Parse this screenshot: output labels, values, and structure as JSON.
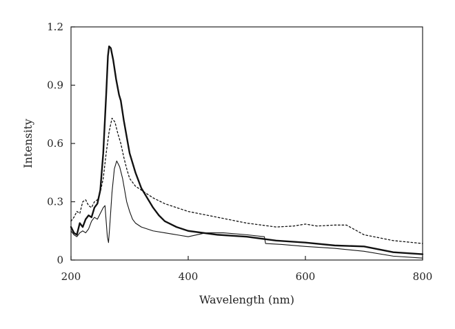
{
  "chart_data": {
    "type": "line",
    "xlabel": "Wavelength (nm)",
    "ylabel": "Intensity",
    "xlim": [
      200,
      800
    ],
    "ylim": [
      0,
      1.2
    ],
    "x_ticks": [
      200,
      400,
      600,
      800
    ],
    "y_ticks": [
      0,
      0.3,
      0.6,
      0.9,
      1.2
    ],
    "y_tick_labels": [
      "0",
      "0.3",
      "0.6",
      "0.9",
      "1.2"
    ],
    "grid": false,
    "legend": "none",
    "series": [
      {
        "style": "thick-solid",
        "color": "#111111",
        "points": [
          [
            200,
            0.17
          ],
          [
            205,
            0.14
          ],
          [
            210,
            0.13
          ],
          [
            215,
            0.19
          ],
          [
            220,
            0.17
          ],
          [
            225,
            0.21
          ],
          [
            230,
            0.23
          ],
          [
            235,
            0.22
          ],
          [
            240,
            0.27
          ],
          [
            245,
            0.29
          ],
          [
            250,
            0.36
          ],
          [
            255,
            0.55
          ],
          [
            260,
            0.85
          ],
          [
            263,
            1.05
          ],
          [
            265,
            1.1
          ],
          [
            268,
            1.09
          ],
          [
            272,
            1.03
          ],
          [
            277,
            0.93
          ],
          [
            282,
            0.85
          ],
          [
            285,
            0.82
          ],
          [
            290,
            0.72
          ],
          [
            300,
            0.55
          ],
          [
            310,
            0.45
          ],
          [
            320,
            0.37
          ],
          [
            330,
            0.32
          ],
          [
            340,
            0.27
          ],
          [
            350,
            0.23
          ],
          [
            360,
            0.2
          ],
          [
            380,
            0.17
          ],
          [
            400,
            0.15
          ],
          [
            450,
            0.13
          ],
          [
            500,
            0.12
          ],
          [
            550,
            0.1
          ],
          [
            600,
            0.09
          ],
          [
            650,
            0.075
          ],
          [
            700,
            0.07
          ],
          [
            750,
            0.04
          ],
          [
            800,
            0.03
          ]
        ]
      },
      {
        "style": "dotted",
        "color": "#111111",
        "points": [
          [
            200,
            0.2
          ],
          [
            205,
            0.22
          ],
          [
            210,
            0.25
          ],
          [
            215,
            0.24
          ],
          [
            220,
            0.3
          ],
          [
            225,
            0.31
          ],
          [
            230,
            0.28
          ],
          [
            235,
            0.27
          ],
          [
            240,
            0.3
          ],
          [
            245,
            0.31
          ],
          [
            250,
            0.35
          ],
          [
            255,
            0.42
          ],
          [
            260,
            0.55
          ],
          [
            265,
            0.66
          ],
          [
            270,
            0.73
          ],
          [
            275,
            0.71
          ],
          [
            280,
            0.65
          ],
          [
            285,
            0.6
          ],
          [
            290,
            0.53
          ],
          [
            295,
            0.47
          ],
          [
            300,
            0.42
          ],
          [
            310,
            0.38
          ],
          [
            320,
            0.36
          ],
          [
            340,
            0.32
          ],
          [
            360,
            0.29
          ],
          [
            380,
            0.27
          ],
          [
            400,
            0.25
          ],
          [
            450,
            0.22
          ],
          [
            500,
            0.19
          ],
          [
            550,
            0.17
          ],
          [
            580,
            0.175
          ],
          [
            600,
            0.185
          ],
          [
            620,
            0.175
          ],
          [
            650,
            0.18
          ],
          [
            670,
            0.18
          ],
          [
            700,
            0.13
          ],
          [
            750,
            0.1
          ],
          [
            800,
            0.085
          ]
        ]
      },
      {
        "style": "thin-solid",
        "color": "#111111",
        "points": [
          [
            200,
            0.15
          ],
          [
            205,
            0.13
          ],
          [
            210,
            0.12
          ],
          [
            215,
            0.14
          ],
          [
            220,
            0.15
          ],
          [
            225,
            0.14
          ],
          [
            230,
            0.16
          ],
          [
            235,
            0.2
          ],
          [
            240,
            0.22
          ],
          [
            245,
            0.21
          ],
          [
            250,
            0.24
          ],
          [
            255,
            0.27
          ],
          [
            258,
            0.28
          ],
          [
            260,
            0.2
          ],
          [
            262,
            0.12
          ],
          [
            264,
            0.09
          ],
          [
            266,
            0.17
          ],
          [
            270,
            0.35
          ],
          [
            274,
            0.47
          ],
          [
            278,
            0.51
          ],
          [
            283,
            0.48
          ],
          [
            288,
            0.42
          ],
          [
            295,
            0.3
          ],
          [
            300,
            0.25
          ],
          [
            305,
            0.21
          ],
          [
            310,
            0.19
          ],
          [
            320,
            0.17
          ],
          [
            340,
            0.15
          ],
          [
            360,
            0.14
          ],
          [
            380,
            0.13
          ],
          [
            400,
            0.12
          ],
          [
            430,
            0.14
          ],
          [
            460,
            0.14
          ],
          [
            500,
            0.13
          ],
          [
            530,
            0.12
          ],
          [
            532,
            0.085
          ],
          [
            560,
            0.08
          ],
          [
            600,
            0.07
          ],
          [
            650,
            0.06
          ],
          [
            700,
            0.045
          ],
          [
            750,
            0.02
          ],
          [
            800,
            0.01
          ]
        ]
      }
    ]
  }
}
